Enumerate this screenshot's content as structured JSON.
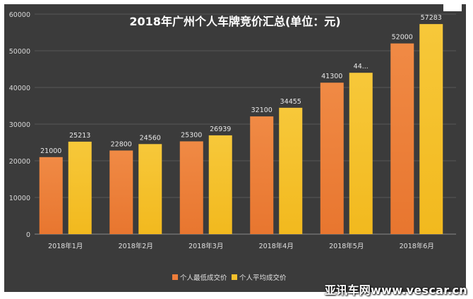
{
  "chart_data": {
    "type": "bar",
    "title": "2018年广州个人车牌竞价汇总(单位：元)",
    "categories": [
      "2018年1月",
      "2018年2月",
      "2018年3月",
      "2018年4月",
      "2018年5月",
      "2018年6月"
    ],
    "series": [
      {
        "name": "个人最低成交价",
        "values": [
          21000,
          22800,
          25300,
          32100,
          41300,
          52000
        ],
        "labels": [
          "21000",
          "22800",
          "25300",
          "32100",
          "41300",
          "52000"
        ],
        "color": "#ef7d3a"
      },
      {
        "name": "个人平均成交价",
        "values": [
          25213,
          24560,
          26939,
          34455,
          44000,
          57283
        ],
        "labels": [
          "25213",
          "24560",
          "26939",
          "34455",
          "44...",
          "57283"
        ],
        "color": "#f5c02b"
      }
    ],
    "yticks": [
      0,
      10000,
      20000,
      30000,
      40000,
      50000,
      60000
    ],
    "ylim": [
      0,
      60000
    ],
    "grid": true,
    "legend_position": "bottom"
  },
  "watermark": "亚讯车网www.vescar.cn"
}
